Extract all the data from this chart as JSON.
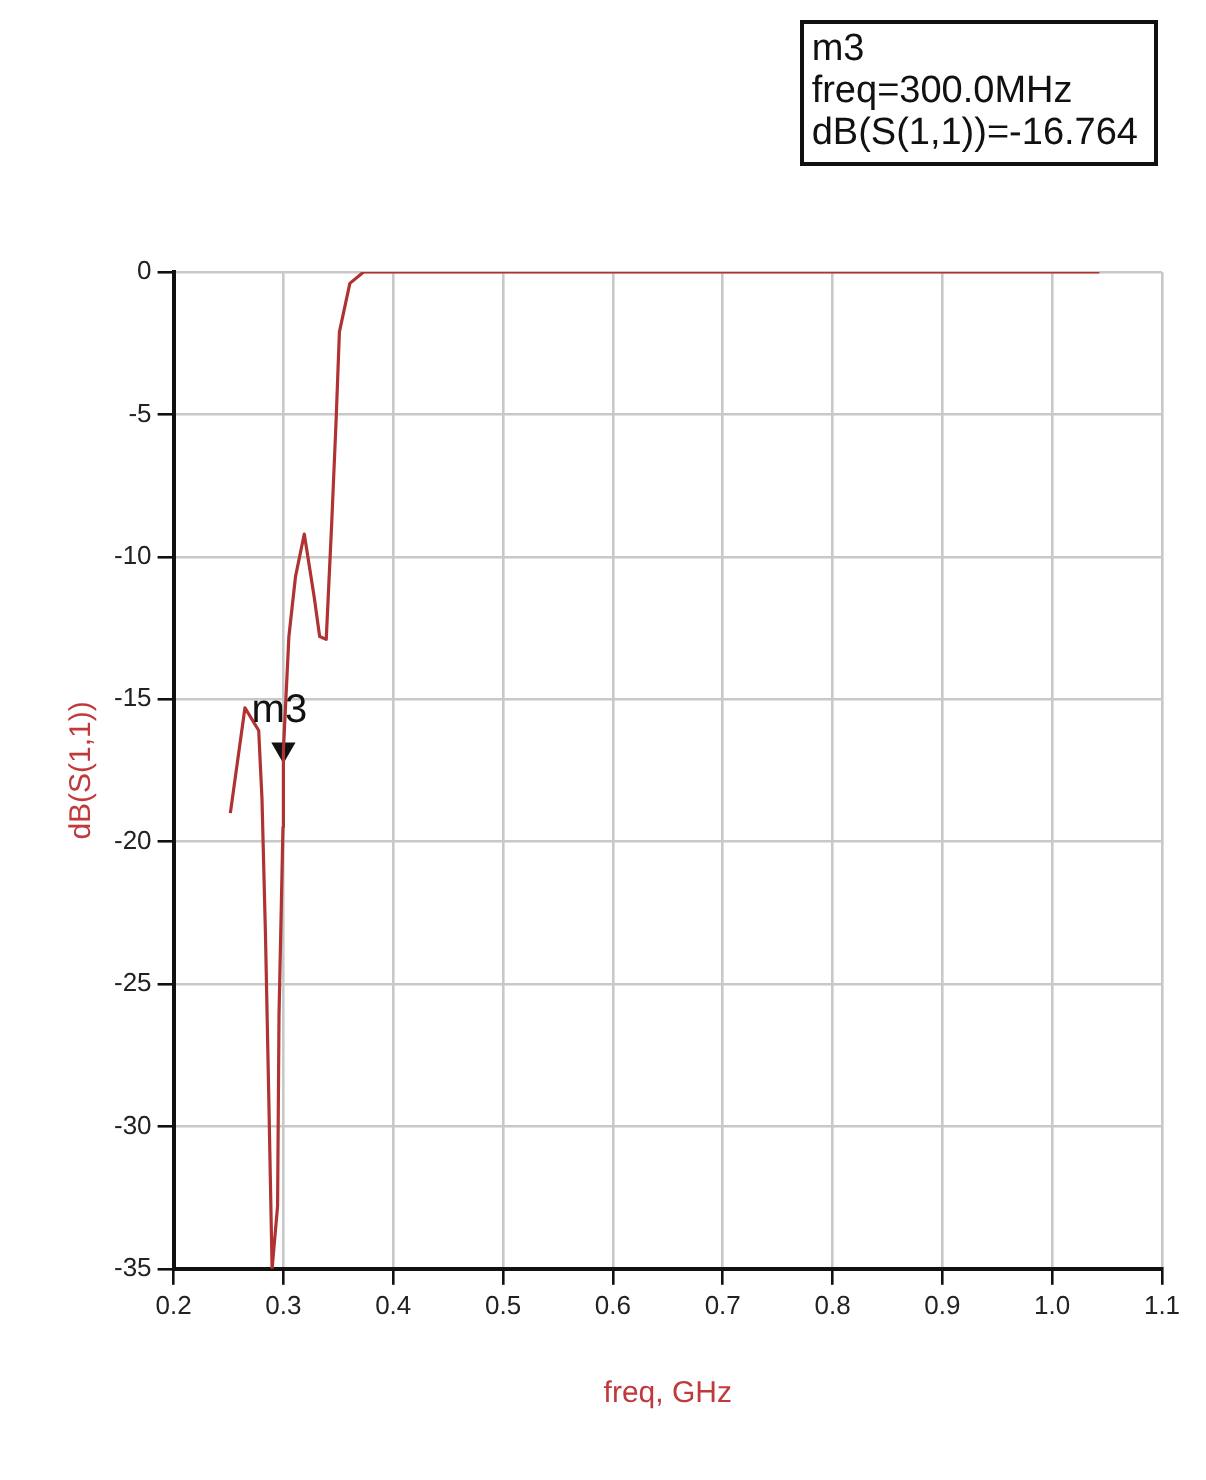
{
  "chart_data": {
    "type": "line",
    "xlabel": "freq, GHz",
    "ylabel": "dB(S(1,1))",
    "series": [
      {
        "color": "#b03232",
        "x": [
          0.2517,
          0.265,
          0.2775,
          0.2805,
          0.2837,
          0.2867,
          0.2897,
          0.2947,
          0.296,
          0.2996,
          0.3,
          0.305,
          0.311,
          0.319,
          0.328,
          0.333,
          0.339,
          0.344,
          0.348,
          0.351,
          0.3605,
          0.373,
          1.043
        ],
        "values": [
          -19.0,
          -15.3,
          -16.1,
          -18.5,
          -23.3,
          -29,
          -35,
          -32.8,
          -26.1,
          -19.5,
          -16.8,
          -12.8,
          -10.7,
          -9.2,
          -11.4,
          -12.8,
          -12.9,
          -8.8,
          -5.2,
          -2.1,
          -0.4,
          0,
          0
        ]
      },
      {
        "type": "scatter",
        "color": "#111111",
        "marker": "triangle",
        "x": [
          0.3
        ],
        "values": [
          -16.764
        ]
      }
    ],
    "xlim": [
      0.2,
      1.1
    ],
    "xticks": [
      0.2,
      0.3,
      0.4,
      0.5,
      0.6,
      0.7,
      0.8,
      0.9,
      {
        "value": 1.0,
        "label": "1.0"
      },
      1.1
    ],
    "ylim": [
      -35,
      0
    ],
    "yticks": [
      -35,
      -30,
      -25,
      -20,
      -15,
      -10,
      -5,
      0
    ],
    "grid": true,
    "legend": false,
    "marker": "none",
    "line_style": "solid",
    "annotations": [
      {
        "text": "m3",
        "x": 0.3,
        "y": -16.764
      },
      "m3\nfreq=300.0MHz\ndB(S(1,1))=-16.764"
    ]
  }
}
